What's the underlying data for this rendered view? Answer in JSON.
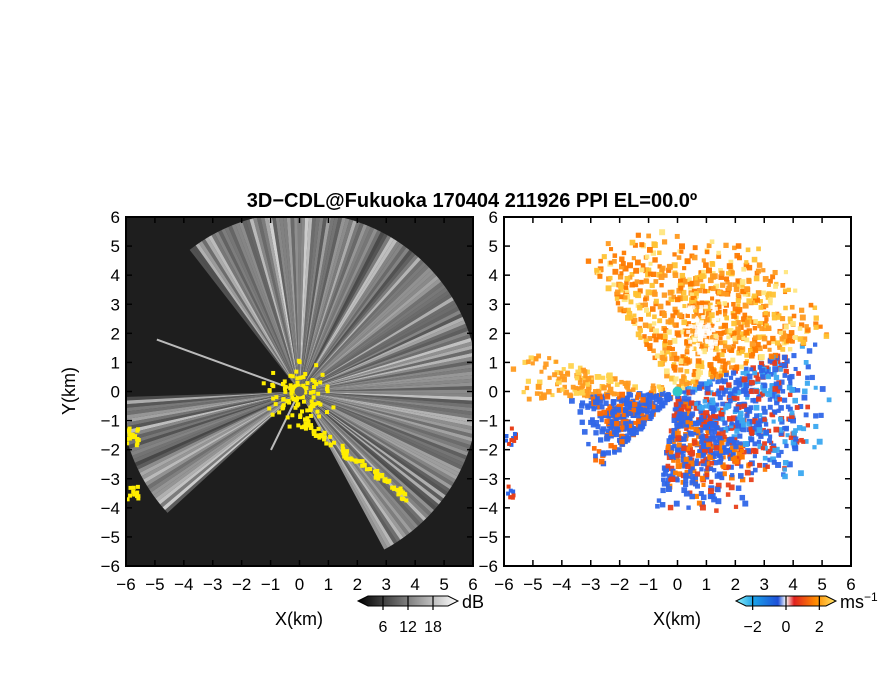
{
  "title": "3D−CDL@Fukuoka 170404 211926 PPI EL=00.0º",
  "chart_data": [
    {
      "type": "heatmap",
      "variable": "reflectivity",
      "xlabel": "X(km)",
      "ylabel": "Y(km)",
      "xlim": [
        -6,
        6
      ],
      "ylim": [
        -6,
        6
      ],
      "x_ticks": [
        "−6",
        "−5",
        "−4",
        "−3",
        "−2",
        "−1",
        "0",
        "1",
        "2",
        "3",
        "4",
        "5",
        "6"
      ],
      "y_ticks": [
        "6",
        "5",
        "4",
        "3",
        "2",
        "1",
        "0",
        "−1",
        "−2",
        "−3",
        "−4",
        "−5",
        "−6"
      ],
      "colorbar": {
        "unit": "dB",
        "ticks": [
          "6",
          "12",
          "18"
        ],
        "tick_values": [
          6,
          12,
          18
        ],
        "range": [
          0,
          24
        ]
      },
      "colors": {
        "background": "#1e1e1e",
        "beam": "#e6e6e6",
        "highlight": "#ffee00"
      }
    },
    {
      "type": "heatmap",
      "variable": "doppler velocity",
      "xlabel": "X(km)",
      "xlim": [
        -6,
        6
      ],
      "ylim": [
        -6,
        6
      ],
      "x_ticks": [
        "−6",
        "−5",
        "−4",
        "−3",
        "−2",
        "−1",
        "0",
        "1",
        "2",
        "3",
        "4",
        "5",
        "6"
      ],
      "y_ticks": [
        "6",
        "5",
        "4",
        "3",
        "2",
        "1",
        "0",
        "−1",
        "−2",
        "−3",
        "−4",
        "−5",
        "−6"
      ],
      "colorbar": {
        "unit": "ms",
        "unit_exp": "−1",
        "ticks": [
          "−2",
          "0",
          "2"
        ],
        "tick_values": [
          -2,
          0,
          2
        ],
        "range": [
          -3,
          3
        ]
      },
      "colors": {
        "negative": "#2f66e8",
        "negative_light": "#5ed8f0",
        "positive": "#ff6a00",
        "positive_light": "#ffd34d",
        "zero": "#ffffff"
      }
    }
  ]
}
